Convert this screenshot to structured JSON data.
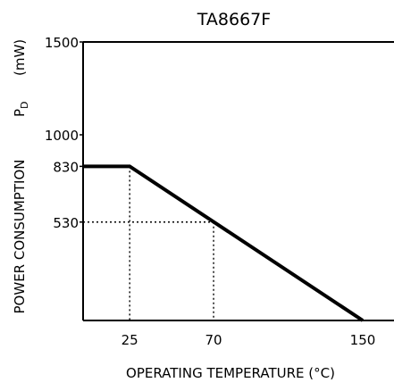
{
  "chart_data": {
    "type": "line",
    "title": "TA8667F",
    "xlabel": "OPERATING  TEMPERATURE   (°C)",
    "ylabel_main": "POWER CONSUMPTION",
    "ylabel_symbol": "P",
    "ylabel_subscript": "D",
    "ylabel_unit": "(mW)",
    "x_ticks": [
      "25",
      "70",
      "150"
    ],
    "y_ticks": [
      "530",
      "830",
      "1000",
      "1500"
    ],
    "xlim": [
      0,
      150
    ],
    "ylim": [
      0,
      1500
    ],
    "series": [
      {
        "x": [
          0,
          25,
          150
        ],
        "y": [
          830,
          830,
          0
        ]
      }
    ],
    "reference_lines": [
      {
        "x": 25,
        "y": 830
      },
      {
        "x": 70,
        "y": 530
      }
    ],
    "grid": false,
    "colors": {
      "line": "#000000",
      "axis": "#000000",
      "background": "#ffffff"
    }
  }
}
